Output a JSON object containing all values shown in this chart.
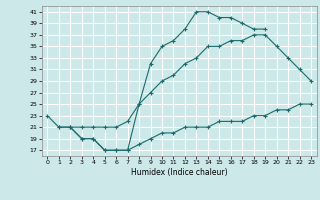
{
  "xlabel": "Humidex (Indice chaleur)",
  "bg_color": "#cce8e8",
  "grid_color": "#ffffff",
  "line_color": "#1a6b6b",
  "xlim": [
    -0.5,
    23.5
  ],
  "ylim": [
    16,
    42
  ],
  "xticks": [
    0,
    1,
    2,
    3,
    4,
    5,
    6,
    7,
    8,
    9,
    10,
    11,
    12,
    13,
    14,
    15,
    16,
    17,
    18,
    19,
    20,
    21,
    22,
    23
  ],
  "yticks": [
    17,
    19,
    21,
    23,
    25,
    27,
    29,
    31,
    33,
    35,
    37,
    39,
    41
  ],
  "line1_x": [
    0,
    1,
    2,
    3,
    4,
    5,
    6,
    7,
    8,
    9,
    10,
    11,
    12,
    13,
    14,
    15,
    16,
    17,
    18,
    19
  ],
  "line1_y": [
    23,
    21,
    21,
    19,
    19,
    17,
    17,
    17,
    25,
    32,
    35,
    36,
    38,
    41,
    41,
    40,
    40,
    39,
    38,
    38
  ],
  "line2_x": [
    1,
    2,
    3,
    4,
    5,
    6,
    7,
    8,
    9,
    10,
    11,
    12,
    13,
    14,
    15,
    16,
    17,
    18,
    19,
    20,
    21,
    22,
    23
  ],
  "line2_y": [
    21,
    21,
    19,
    19,
    17,
    17,
    17,
    18,
    19,
    20,
    20,
    21,
    21,
    21,
    22,
    22,
    22,
    23,
    23,
    24,
    24,
    25,
    25
  ],
  "line3_x": [
    2,
    3,
    4,
    5,
    6,
    7,
    8,
    9,
    10,
    11,
    12,
    13,
    14,
    15,
    16,
    17,
    18,
    19,
    20,
    21,
    22,
    23
  ],
  "line3_y": [
    21,
    21,
    21,
    21,
    21,
    22,
    25,
    27,
    29,
    30,
    32,
    33,
    35,
    35,
    36,
    36,
    37,
    37,
    35,
    33,
    31,
    29
  ]
}
